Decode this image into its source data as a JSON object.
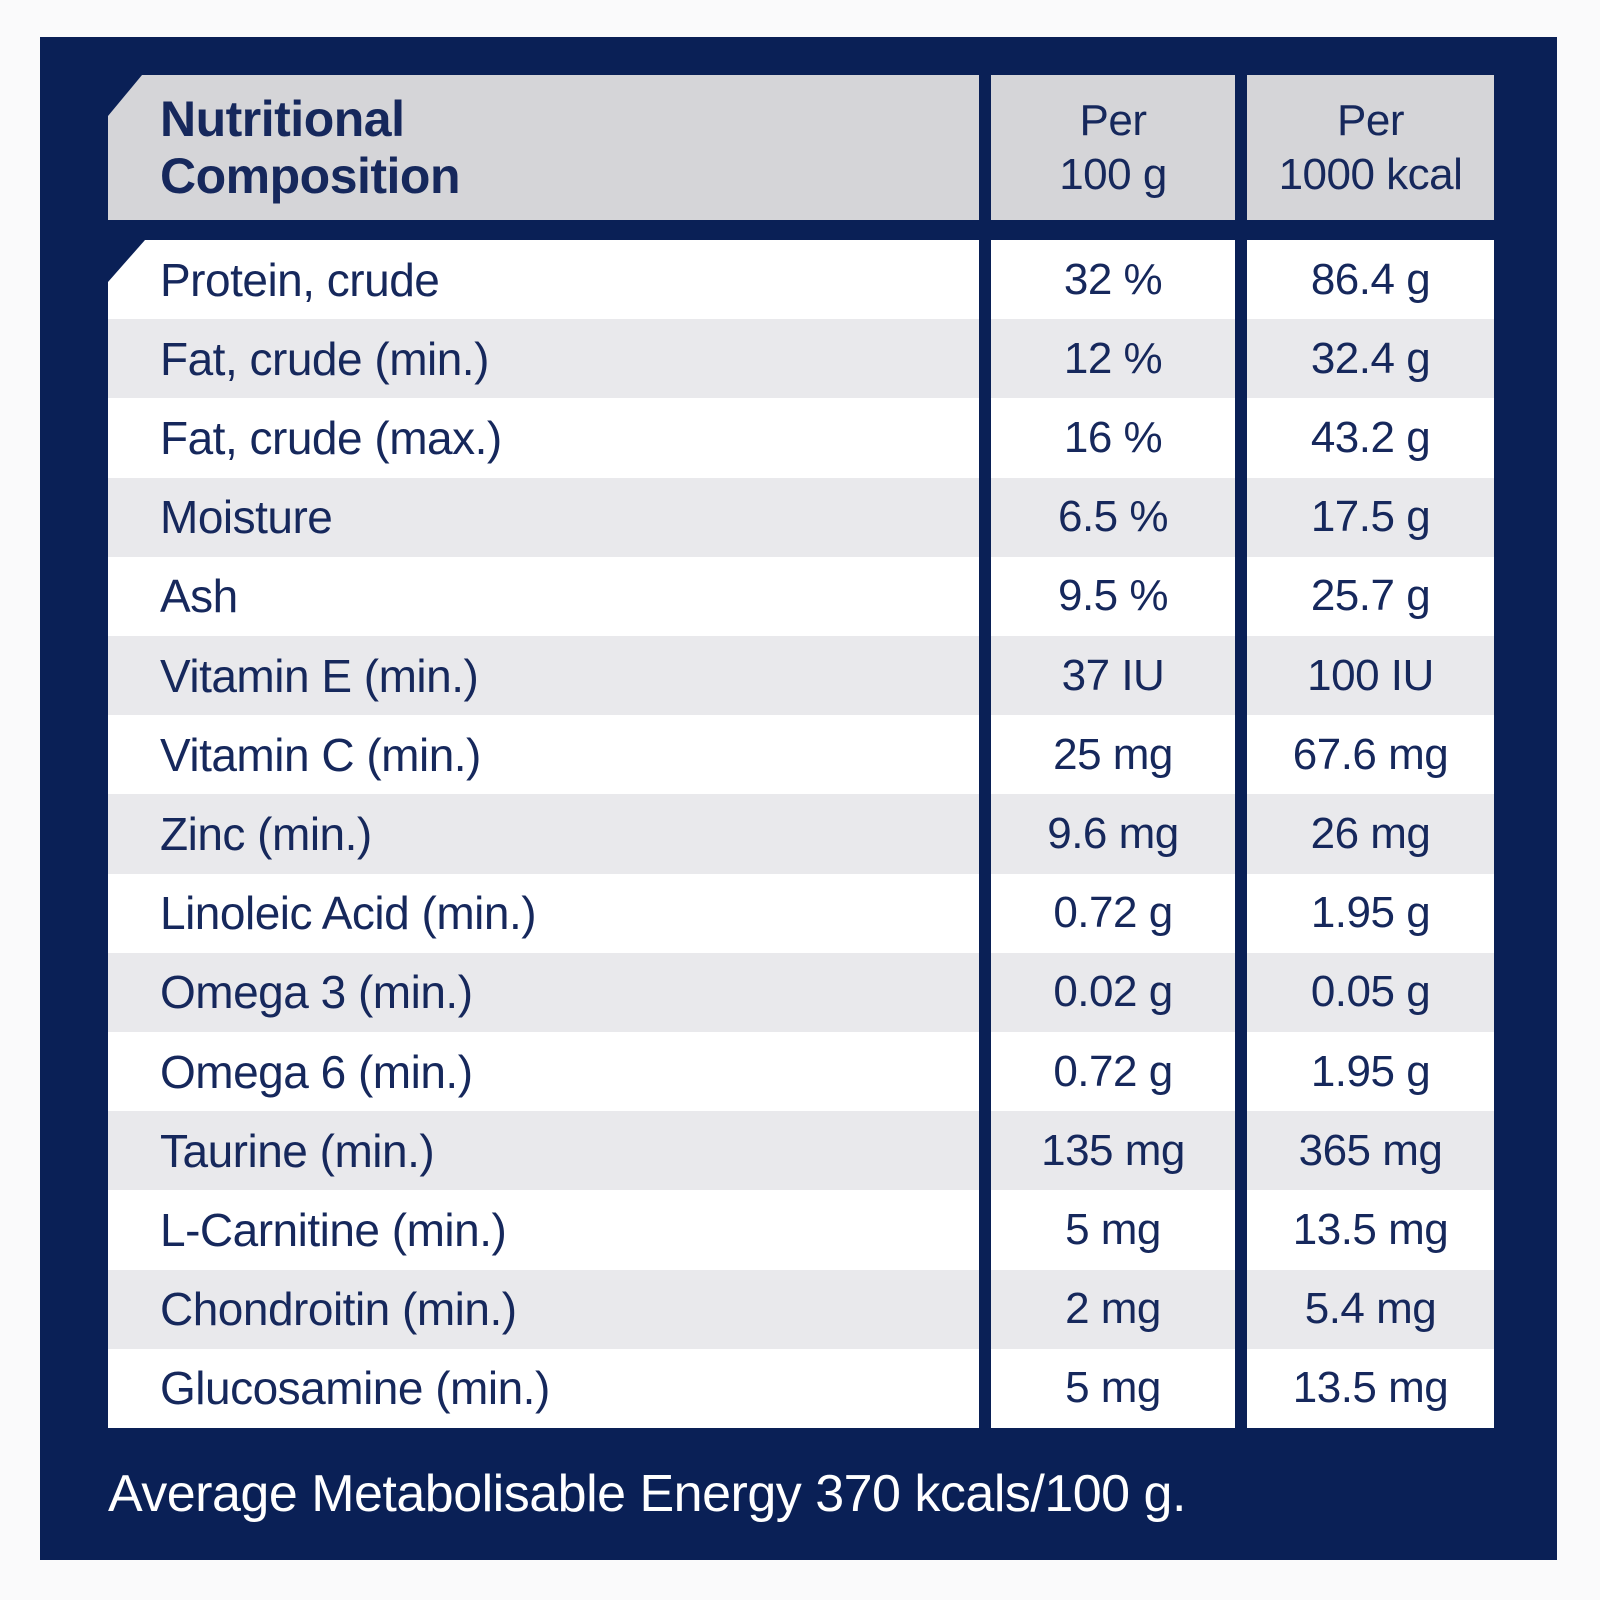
{
  "table": {
    "title_line1": "Nutritional",
    "title_line2": "Composition",
    "col2_header_line1": "Per",
    "col2_header_line2": "100 g",
    "col3_header_line1": "Per",
    "col3_header_line2": "1000 kcal"
  },
  "rows": [
    {
      "label": "Protein, crude",
      "per_100g": "32 %",
      "per_1000kcal": "86.4 g"
    },
    {
      "label": "Fat, crude (min.)",
      "per_100g": "12 %",
      "per_1000kcal": "32.4 g"
    },
    {
      "label": "Fat, crude (max.)",
      "per_100g": "16 %",
      "per_1000kcal": "43.2 g"
    },
    {
      "label": "Moisture",
      "per_100g": "6.5 %",
      "per_1000kcal": "17.5 g"
    },
    {
      "label": "Ash",
      "per_100g": "9.5 %",
      "per_1000kcal": "25.7 g"
    },
    {
      "label": "Vitamin E (min.)",
      "per_100g": "37 IU",
      "per_1000kcal": "100 IU"
    },
    {
      "label": "Vitamin C (min.)",
      "per_100g": "25 mg",
      "per_1000kcal": "67.6 mg"
    },
    {
      "label": "Zinc (min.)",
      "per_100g": "9.6 mg",
      "per_1000kcal": "26 mg"
    },
    {
      "label": "Linoleic Acid (min.)",
      "per_100g": "0.72 g",
      "per_1000kcal": "1.95 g"
    },
    {
      "label": "Omega 3 (min.)",
      "per_100g": "0.02 g",
      "per_1000kcal": "0.05 g"
    },
    {
      "label": "Omega 6 (min.)",
      "per_100g": "0.72 g",
      "per_1000kcal": "1.95 g"
    },
    {
      "label": "Taurine (min.)",
      "per_100g": "135 mg",
      "per_1000kcal": "365 mg"
    },
    {
      "label": "L-Carnitine (min.)",
      "per_100g": "5 mg",
      "per_1000kcal": "13.5 mg"
    },
    {
      "label": "Chondroitin (min.)",
      "per_100g": "2 mg",
      "per_1000kcal": "5.4 mg"
    },
    {
      "label": "Glucosamine (min.)",
      "per_100g": "5 mg",
      "per_1000kcal": "13.5 mg"
    }
  ],
  "footer": {
    "text": "Average Metabolisable Energy 370 kcals/100 g."
  },
  "colors": {
    "panel_navy": "#0a2056",
    "header_gray": "#d5d5d8",
    "row_alt_gray": "#e9e9ec",
    "text_navy": "#16285c",
    "footer_white": "#ffffff"
  }
}
